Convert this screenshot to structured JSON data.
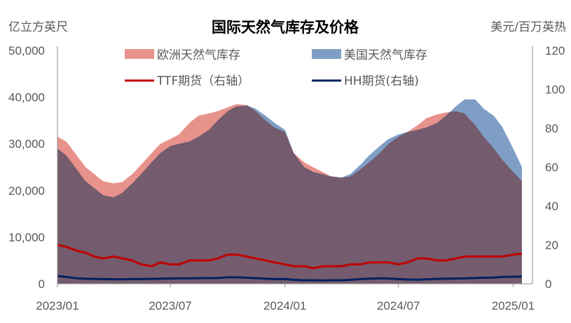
{
  "chart_data": {
    "type": "area",
    "title": "国际天然气库存及价格",
    "ylabel": "亿立方英尺",
    "y2label": "美元/百万英热",
    "ylim": [
      0,
      50000
    ],
    "y2lim": [
      0,
      120
    ],
    "yticks": [
      "50,000",
      "40,000",
      "30,000",
      "20,000",
      "10,000",
      "0"
    ],
    "y2ticks": [
      "120",
      "100",
      "80",
      "60",
      "40",
      "20",
      "0"
    ],
    "xticks": [
      "2023/01",
      "2023/07",
      "2024/01",
      "2024/07",
      "2025/01"
    ],
    "grid": false,
    "legend_position": "top",
    "x_range": [
      "2023-01",
      "2025-02"
    ],
    "series": [
      {
        "name": "欧洲天然气库存",
        "kind": "area",
        "axis": "left",
        "color": "#E8928C",
        "points": [
          [
            "2023-01-01",
            31500
          ],
          [
            "2023-01-15",
            30500
          ],
          [
            "2023-02-01",
            27500
          ],
          [
            "2023-02-15",
            25000
          ],
          [
            "2023-03-01",
            23500
          ],
          [
            "2023-03-15",
            22000
          ],
          [
            "2023-04-01",
            21500
          ],
          [
            "2023-04-15",
            21800
          ],
          [
            "2023-05-01",
            23500
          ],
          [
            "2023-05-15",
            25500
          ],
          [
            "2023-06-01",
            28000
          ],
          [
            "2023-06-15",
            30000
          ],
          [
            "2023-07-01",
            31000
          ],
          [
            "2023-07-15",
            32000
          ],
          [
            "2023-08-01",
            34500
          ],
          [
            "2023-08-15",
            36000
          ],
          [
            "2023-09-01",
            36500
          ],
          [
            "2023-09-15",
            37000
          ],
          [
            "2023-10-01",
            37800
          ],
          [
            "2023-10-15",
            38500
          ],
          [
            "2023-11-01",
            38300
          ],
          [
            "2023-11-15",
            37000
          ],
          [
            "2023-12-01",
            35000
          ],
          [
            "2023-12-15",
            33500
          ],
          [
            "2024-01-01",
            32500
          ],
          [
            "2024-01-15",
            28000
          ],
          [
            "2024-02-01",
            26000
          ],
          [
            "2024-02-15",
            25000
          ],
          [
            "2024-03-01",
            24000
          ],
          [
            "2024-03-15",
            23000
          ],
          [
            "2024-04-01",
            22700
          ],
          [
            "2024-04-15",
            23000
          ],
          [
            "2024-05-01",
            24500
          ],
          [
            "2024-05-15",
            26000
          ],
          [
            "2024-06-01",
            28000
          ],
          [
            "2024-06-15",
            30000
          ],
          [
            "2024-07-01",
            31500
          ],
          [
            "2024-07-15",
            32500
          ],
          [
            "2024-08-01",
            34000
          ],
          [
            "2024-08-15",
            35500
          ],
          [
            "2024-09-01",
            36300
          ],
          [
            "2024-09-15",
            36700
          ],
          [
            "2024-10-01",
            37000
          ],
          [
            "2024-10-15",
            36500
          ],
          [
            "2024-11-01",
            34000
          ],
          [
            "2024-11-15",
            31500
          ],
          [
            "2024-12-01",
            29000
          ],
          [
            "2024-12-15",
            26500
          ],
          [
            "2025-01-01",
            24000
          ],
          [
            "2025-01-15",
            22000
          ]
        ]
      },
      {
        "name": "美国天然气库存",
        "kind": "area",
        "axis": "left",
        "color": "#7F9EC6",
        "points": [
          [
            "2023-01-01",
            29000
          ],
          [
            "2023-01-15",
            27500
          ],
          [
            "2023-02-01",
            24500
          ],
          [
            "2023-02-15",
            22000
          ],
          [
            "2023-03-01",
            20500
          ],
          [
            "2023-03-15",
            19000
          ],
          [
            "2023-04-01",
            18500
          ],
          [
            "2023-04-15",
            19500
          ],
          [
            "2023-05-01",
            21500
          ],
          [
            "2023-05-15",
            23500
          ],
          [
            "2023-06-01",
            26000
          ],
          [
            "2023-06-15",
            28000
          ],
          [
            "2023-07-01",
            29500
          ],
          [
            "2023-07-15",
            30000
          ],
          [
            "2023-08-01",
            30500
          ],
          [
            "2023-08-15",
            31500
          ],
          [
            "2023-09-01",
            33000
          ],
          [
            "2023-09-15",
            35000
          ],
          [
            "2023-10-01",
            37000
          ],
          [
            "2023-10-15",
            38000
          ],
          [
            "2023-11-01",
            38200
          ],
          [
            "2023-11-15",
            37500
          ],
          [
            "2023-12-01",
            36000
          ],
          [
            "2023-12-15",
            34500
          ],
          [
            "2024-01-01",
            33000
          ],
          [
            "2024-01-15",
            28000
          ],
          [
            "2024-02-01",
            25000
          ],
          [
            "2024-02-15",
            24000
          ],
          [
            "2024-03-01",
            23500
          ],
          [
            "2024-03-15",
            23000
          ],
          [
            "2024-04-01",
            22800
          ],
          [
            "2024-04-15",
            23500
          ],
          [
            "2024-05-01",
            25500
          ],
          [
            "2024-05-15",
            27500
          ],
          [
            "2024-06-01",
            29500
          ],
          [
            "2024-06-15",
            31000
          ],
          [
            "2024-07-01",
            32000
          ],
          [
            "2024-07-15",
            32500
          ],
          [
            "2024-08-01",
            33000
          ],
          [
            "2024-08-15",
            33500
          ],
          [
            "2024-09-01",
            34500
          ],
          [
            "2024-09-15",
            36000
          ],
          [
            "2024-10-01",
            38000
          ],
          [
            "2024-10-15",
            39500
          ],
          [
            "2024-11-01",
            39500
          ],
          [
            "2024-11-15",
            37500
          ],
          [
            "2024-12-01",
            36000
          ],
          [
            "2024-12-15",
            33500
          ],
          [
            "2025-01-01",
            29000
          ],
          [
            "2025-01-15",
            25000
          ]
        ]
      },
      {
        "name": "TTF期货（右轴）",
        "kind": "line",
        "axis": "right",
        "color": "#C00000",
        "points": [
          [
            "2023-01-01",
            20
          ],
          [
            "2023-01-15",
            19
          ],
          [
            "2023-02-01",
            17
          ],
          [
            "2023-02-15",
            16
          ],
          [
            "2023-03-01",
            14
          ],
          [
            "2023-03-15",
            13
          ],
          [
            "2023-04-01",
            14
          ],
          [
            "2023-04-15",
            13
          ],
          [
            "2023-05-01",
            12
          ],
          [
            "2023-05-15",
            10
          ],
          [
            "2023-06-01",
            9
          ],
          [
            "2023-06-15",
            11
          ],
          [
            "2023-07-01",
            10
          ],
          [
            "2023-07-15",
            10
          ],
          [
            "2023-08-01",
            12
          ],
          [
            "2023-08-15",
            12
          ],
          [
            "2023-09-01",
            12
          ],
          [
            "2023-09-15",
            13
          ],
          [
            "2023-10-01",
            15
          ],
          [
            "2023-10-15",
            15
          ],
          [
            "2023-11-01",
            14
          ],
          [
            "2023-11-15",
            13
          ],
          [
            "2023-12-01",
            12
          ],
          [
            "2023-12-15",
            11
          ],
          [
            "2024-01-01",
            10
          ],
          [
            "2024-01-15",
            9
          ],
          [
            "2024-02-01",
            9
          ],
          [
            "2024-02-15",
            8
          ],
          [
            "2024-03-01",
            9
          ],
          [
            "2024-03-15",
            9
          ],
          [
            "2024-04-01",
            9
          ],
          [
            "2024-04-15",
            10
          ],
          [
            "2024-05-01",
            10
          ],
          [
            "2024-05-15",
            11
          ],
          [
            "2024-06-01",
            11
          ],
          [
            "2024-06-15",
            11
          ],
          [
            "2024-07-01",
            10
          ],
          [
            "2024-07-15",
            11
          ],
          [
            "2024-08-01",
            13
          ],
          [
            "2024-08-15",
            13
          ],
          [
            "2024-09-01",
            12
          ],
          [
            "2024-09-15",
            12
          ],
          [
            "2024-10-01",
            13
          ],
          [
            "2024-10-15",
            14
          ],
          [
            "2024-11-01",
            14
          ],
          [
            "2024-11-15",
            14
          ],
          [
            "2024-12-01",
            14
          ],
          [
            "2024-12-15",
            14
          ],
          [
            "2025-01-01",
            15
          ],
          [
            "2025-01-15",
            15.5
          ]
        ]
      },
      {
        "name": "HH期货(右轴)",
        "kind": "line",
        "axis": "right",
        "color": "#002060",
        "points": [
          [
            "2023-01-01",
            4
          ],
          [
            "2023-01-15",
            3.5
          ],
          [
            "2023-02-01",
            2.8
          ],
          [
            "2023-02-15",
            2.6
          ],
          [
            "2023-03-01",
            2.5
          ],
          [
            "2023-03-15",
            2.4
          ],
          [
            "2023-04-01",
            2.3
          ],
          [
            "2023-04-15",
            2.3
          ],
          [
            "2023-05-01",
            2.4
          ],
          [
            "2023-05-15",
            2.4
          ],
          [
            "2023-06-01",
            2.5
          ],
          [
            "2023-06-15",
            2.6
          ],
          [
            "2023-07-01",
            2.7
          ],
          [
            "2023-07-15",
            2.8
          ],
          [
            "2023-08-01",
            2.8
          ],
          [
            "2023-08-15",
            2.9
          ],
          [
            "2023-09-01",
            2.9
          ],
          [
            "2023-09-15",
            3.0
          ],
          [
            "2023-10-01",
            3.3
          ],
          [
            "2023-10-15",
            3.3
          ],
          [
            "2023-11-01",
            3.1
          ],
          [
            "2023-11-15",
            2.9
          ],
          [
            "2023-12-01",
            2.6
          ],
          [
            "2023-12-15",
            2.4
          ],
          [
            "2024-01-01",
            2.5
          ],
          [
            "2024-01-15",
            2.0
          ],
          [
            "2024-02-01",
            1.8
          ],
          [
            "2024-02-15",
            1.8
          ],
          [
            "2024-03-01",
            1.7
          ],
          [
            "2024-03-15",
            1.8
          ],
          [
            "2024-04-01",
            1.8
          ],
          [
            "2024-04-15",
            2.0
          ],
          [
            "2024-05-01",
            2.4
          ],
          [
            "2024-05-15",
            2.6
          ],
          [
            "2024-06-01",
            2.8
          ],
          [
            "2024-06-15",
            2.7
          ],
          [
            "2024-07-01",
            2.4
          ],
          [
            "2024-07-15",
            2.2
          ],
          [
            "2024-08-01",
            2.1
          ],
          [
            "2024-08-15",
            2.3
          ],
          [
            "2024-09-01",
            2.5
          ],
          [
            "2024-09-15",
            2.6
          ],
          [
            "2024-10-01",
            2.7
          ],
          [
            "2024-10-15",
            2.8
          ],
          [
            "2024-11-01",
            3.0
          ],
          [
            "2024-11-15",
            3.1
          ],
          [
            "2024-12-01",
            3.2
          ],
          [
            "2024-12-15",
            3.5
          ],
          [
            "2025-01-01",
            3.6
          ],
          [
            "2025-01-15",
            3.7
          ]
        ]
      }
    ]
  }
}
